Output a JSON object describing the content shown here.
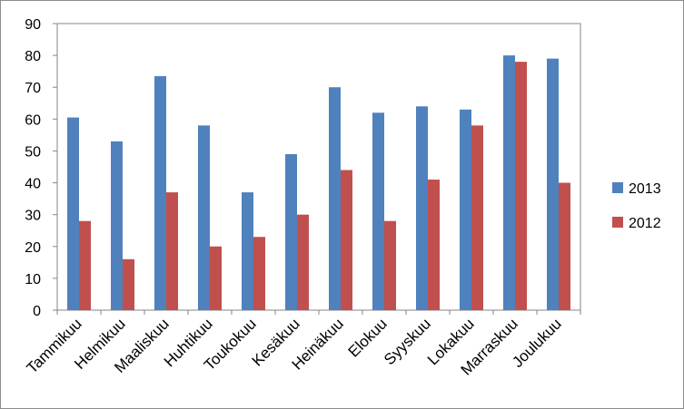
{
  "chart_data": {
    "type": "bar",
    "categories": [
      "Tammikuu",
      "Helmikuu",
      "Maaliskuu",
      "Huhtikuu",
      "Toukokuu",
      "Kesäkuu",
      "Heinäkuu",
      "Elokuu",
      "Syyskuu",
      "Lokakuu",
      "Marraskuu",
      "Joulukuu"
    ],
    "series": [
      {
        "name": "2013",
        "color": "#4f81bd",
        "values": [
          60.5,
          53,
          73.5,
          58,
          37,
          49,
          70,
          62,
          64,
          63,
          80,
          79
        ]
      },
      {
        "name": "2012",
        "color": "#c0504d",
        "values": [
          28,
          16,
          37,
          20,
          23,
          30,
          44,
          28,
          41,
          58,
          78,
          40
        ]
      }
    ],
    "title": "",
    "xlabel": "",
    "ylabel": "",
    "ylim": [
      0,
      90
    ],
    "yticks": [
      "0",
      "10",
      "20",
      "30",
      "40",
      "50",
      "60",
      "70",
      "80",
      "90"
    ],
    "grid": false,
    "legend_position": "right"
  }
}
